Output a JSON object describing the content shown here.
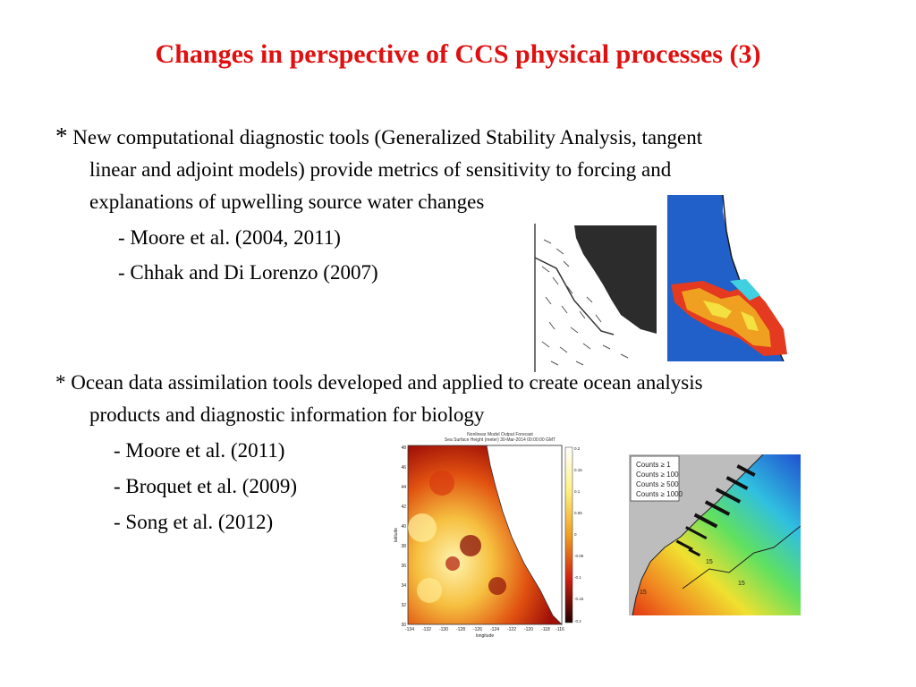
{
  "slide": {
    "title": "Changes in perspective of CCS physical processes (3)",
    "title_color": "#e01010"
  },
  "bullet1": {
    "star": "*",
    "line1": "New computational diagnostic tools (Generalized Stability Analysis, tangent",
    "line2": "linear and adjoint models) provide metrics of sensitivity to forcing and",
    "line3": "explanations of upwelling source water changes",
    "refs": [
      "- Moore et al. (2004, 2011)",
      "- Chhak and Di Lorenzo (2007)"
    ]
  },
  "bullet2": {
    "line1": "* Ocean data assimilation tools developed and applied to create ocean analysis",
    "line2": "products and diagnostic information for biology",
    "refs": [
      "- Moore et al. (2011)",
      "- Broquet et al. (2009)",
      "- Song et al. (2012)"
    ]
  },
  "figure_ssh": {
    "title_line1": "Nonlinear Model Output Forecast",
    "title_line2": "Sea Surface Height (meter) 30-Mar-2014 00:00:00 GMT",
    "ylabel": "latitude",
    "xlabel": "longitude",
    "yticks": [
      "48",
      "46",
      "44",
      "42",
      "40",
      "38",
      "36",
      "34",
      "32",
      "30"
    ],
    "xticks": [
      "-134",
      "-132",
      "-130",
      "-128",
      "-126",
      "-124",
      "-122",
      "-120",
      "-118",
      "-116"
    ],
    "colorbar_ticks": [
      "0.2",
      "0.15",
      "0.1",
      "0.05",
      "0",
      "-0.05",
      "-0.1",
      "-0.15",
      "-0.2"
    ]
  },
  "figure_counts": {
    "legend": [
      "Counts ≥ 1",
      "Counts ≥ 100",
      "Counts ≥ 500",
      "Counts ≥ 1000"
    ],
    "contour_labels": [
      "15",
      "15",
      "15"
    ]
  }
}
